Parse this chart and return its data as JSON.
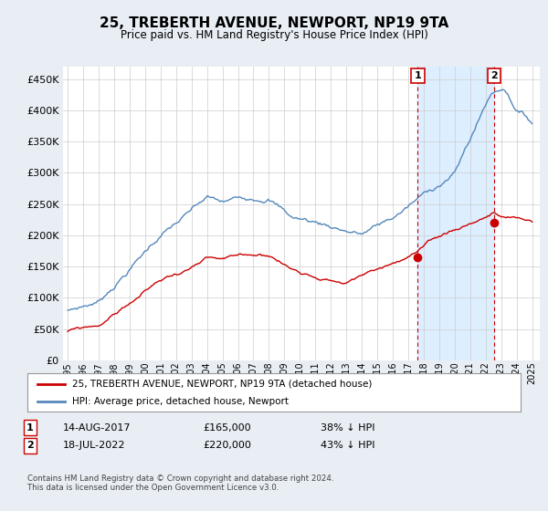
{
  "title": "25, TREBERTH AVENUE, NEWPORT, NP19 9TA",
  "subtitle": "Price paid vs. HM Land Registry's House Price Index (HPI)",
  "ytick_values": [
    0,
    50000,
    100000,
    150000,
    200000,
    250000,
    300000,
    350000,
    400000,
    450000
  ],
  "ylim": [
    0,
    470000
  ],
  "xlim_start": 1994.7,
  "xlim_end": 2025.5,
  "hpi_color": "#5588bb",
  "price_color": "#cc0000",
  "shade_color": "#ddeeff",
  "marker1_x": 2017.617,
  "marker1_y": 165000,
  "marker2_x": 2022.538,
  "marker2_y": 220000,
  "marker1_label": "1",
  "marker2_label": "2",
  "legend_line1": "25, TREBERTH AVENUE, NEWPORT, NP19 9TA (detached house)",
  "legend_line2": "HPI: Average price, detached house, Newport",
  "annotation1_num": "1",
  "annotation1_date": "14-AUG-2017",
  "annotation1_price": "£165,000",
  "annotation1_hpi": "38% ↓ HPI",
  "annotation2_num": "2",
  "annotation2_date": "18-JUL-2022",
  "annotation2_price": "£220,000",
  "annotation2_hpi": "43% ↓ HPI",
  "footer": "Contains HM Land Registry data © Crown copyright and database right 2024.\nThis data is licensed under the Open Government Licence v3.0.",
  "background_color": "#e8eef4",
  "plot_bg_color": "#ffffff",
  "grid_color": "#cccccc"
}
